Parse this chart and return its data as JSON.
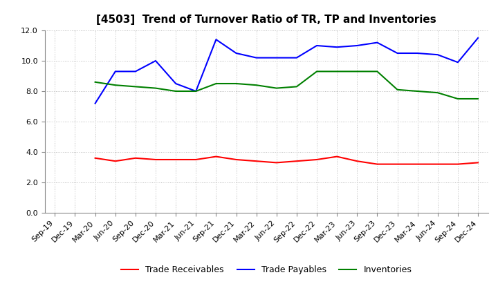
{
  "title": "[4503]  Trend of Turnover Ratio of TR, TP and Inventories",
  "x_labels": [
    "Sep-19",
    "Dec-19",
    "Mar-20",
    "Jun-20",
    "Sep-20",
    "Dec-20",
    "Mar-21",
    "Jun-21",
    "Sep-21",
    "Dec-21",
    "Mar-22",
    "Jun-22",
    "Sep-22",
    "Dec-22",
    "Mar-23",
    "Jun-23",
    "Sep-23",
    "Dec-23",
    "Mar-24",
    "Jun-24",
    "Sep-24",
    "Dec-24"
  ],
  "ylim": [
    0.0,
    12.0
  ],
  "yticks": [
    0.0,
    2.0,
    4.0,
    6.0,
    8.0,
    10.0,
    12.0
  ],
  "trade_receivables": [
    null,
    null,
    3.6,
    3.4,
    3.6,
    3.5,
    3.5,
    3.5,
    3.7,
    3.5,
    3.4,
    3.3,
    3.4,
    3.5,
    3.7,
    3.4,
    3.2,
    3.2,
    3.2,
    3.2,
    3.2,
    3.3
  ],
  "trade_payables": [
    null,
    null,
    7.2,
    9.3,
    9.3,
    10.0,
    8.5,
    8.0,
    11.4,
    10.5,
    10.2,
    10.2,
    10.2,
    11.0,
    10.9,
    11.0,
    11.2,
    10.5,
    10.5,
    10.4,
    9.9,
    11.5
  ],
  "inventories": [
    null,
    null,
    8.6,
    8.4,
    8.3,
    8.2,
    8.0,
    8.0,
    8.5,
    8.5,
    8.4,
    8.2,
    8.3,
    9.3,
    9.3,
    9.3,
    9.3,
    8.1,
    8.0,
    7.9,
    7.5,
    7.5
  ],
  "color_tr": "#ff0000",
  "color_tp": "#0000ff",
  "color_inv": "#008000",
  "legend_labels": [
    "Trade Receivables",
    "Trade Payables",
    "Inventories"
  ],
  "background_color": "#ffffff",
  "grid_color": "#aaaaaa",
  "title_fontsize": 11,
  "tick_fontsize": 8,
  "legend_fontsize": 9,
  "linewidth": 1.5
}
